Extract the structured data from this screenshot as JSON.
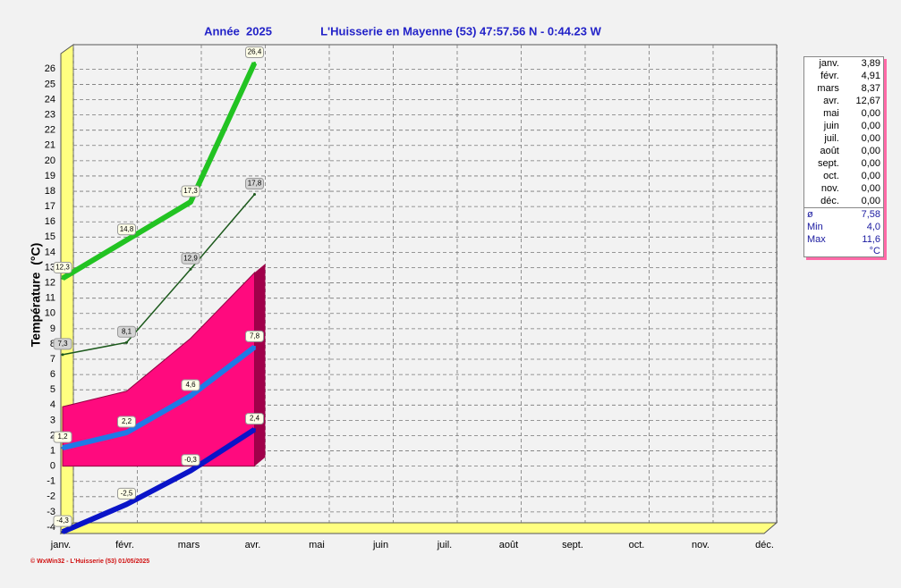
{
  "chart_data": {
    "type": "line",
    "title": "Année  2025",
    "subtitle": "L'Huisserie en Mayenne (53) 47:57.56 N - 0:44.23 W",
    "y_label": "Température  (°C)",
    "footer": "© WxWin32 - L'Huisserie (53) 01/05/2025",
    "categories": [
      "janv.",
      "févr.",
      "mars",
      "avr.",
      "mai",
      "juin",
      "juil.",
      "août",
      "sept.",
      "oct.",
      "nov.",
      "déc."
    ],
    "ylim": [
      -4,
      27.6
    ],
    "yticks": [
      -4,
      -3,
      -2,
      -1,
      0,
      1,
      2,
      3,
      4,
      5,
      6,
      7,
      8,
      9,
      10,
      11,
      12,
      13,
      14,
      15,
      16,
      17,
      18,
      19,
      20,
      21,
      22,
      23,
      24,
      25,
      26
    ],
    "grid": true,
    "series": [
      {
        "kind": "area",
        "color": "#ff0a7e",
        "values": [
          3.89,
          4.91,
          8.37,
          12.67,
          null,
          null,
          null,
          null,
          null,
          null,
          null,
          null
        ]
      },
      {
        "kind": "band",
        "color": "#22c322",
        "values": [
          12.3,
          14.8,
          17.3,
          26.4,
          null,
          null,
          null,
          null,
          null,
          null,
          null,
          null
        ],
        "value_labels": [
          "12,3",
          "14,8",
          "17,3",
          "26,4",
          null,
          null,
          null,
          null,
          null,
          null,
          null,
          null
        ]
      },
      {
        "kind": "line",
        "color": "#1d5a1d",
        "values": [
          7.3,
          8.1,
          12.9,
          17.8,
          null,
          null,
          null,
          null,
          null,
          null,
          null,
          null
        ],
        "value_labels": [
          "7,3",
          "8,1",
          "12,9",
          "17,8",
          null,
          null,
          null,
          null,
          null,
          null,
          null,
          null
        ]
      },
      {
        "kind": "band",
        "color": "#1e7ae6",
        "values": [
          1.2,
          2.2,
          4.6,
          7.8,
          null,
          null,
          null,
          null,
          null,
          null,
          null,
          null
        ],
        "value_labels": [
          "1,2",
          "2,2",
          "4,6",
          "7,8",
          null,
          null,
          null,
          null,
          null,
          null,
          null,
          null
        ]
      },
      {
        "kind": "band",
        "color": "#0a14c8",
        "values": [
          -4.3,
          -2.5,
          -0.3,
          2.4,
          null,
          null,
          null,
          null,
          null,
          null,
          null,
          null
        ],
        "value_labels": [
          "-4,3",
          "-2,5",
          "-0,3",
          "2,4",
          null,
          null,
          null,
          null,
          null,
          null,
          null,
          null
        ]
      }
    ]
  },
  "sidebar": {
    "rows": [
      [
        "janv.",
        "3,89"
      ],
      [
        "févr.",
        "4,91"
      ],
      [
        "mars",
        "8,37"
      ],
      [
        "avr.",
        "12,67"
      ],
      [
        "mai",
        "0,00"
      ],
      [
        "juin",
        "0,00"
      ],
      [
        "juil.",
        "0,00"
      ],
      [
        "août",
        "0,00"
      ],
      [
        "sept.",
        "0,00"
      ],
      [
        "oct.",
        "0,00"
      ],
      [
        "nov.",
        "0,00"
      ],
      [
        "déc.",
        "0,00"
      ]
    ],
    "summary": [
      [
        "ø",
        "7,58"
      ],
      [
        "Min",
        "4,0"
      ],
      [
        "Max",
        "11,6"
      ]
    ],
    "unit": "°C"
  }
}
